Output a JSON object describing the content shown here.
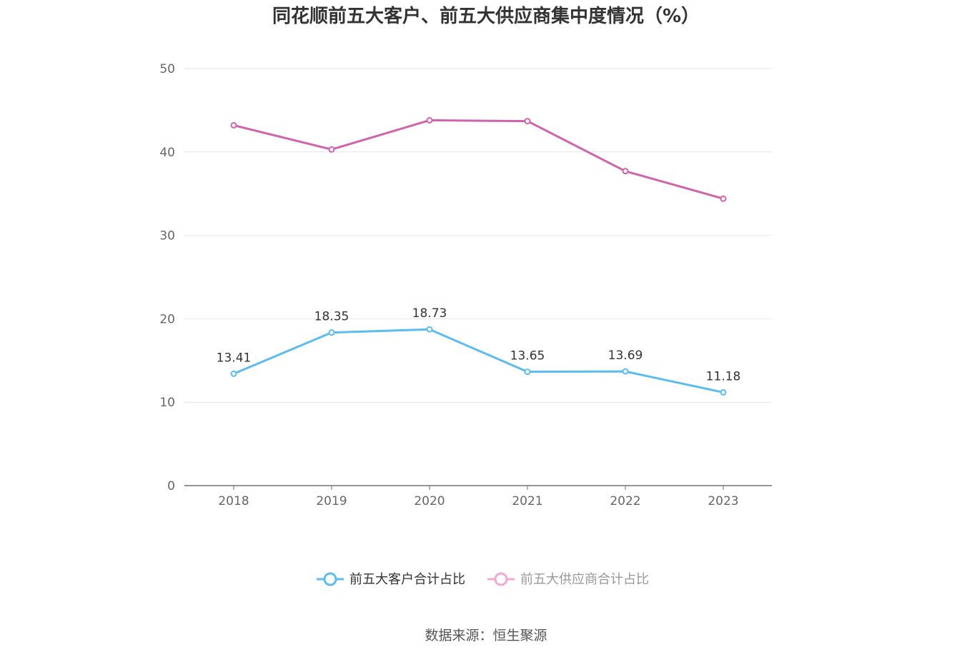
{
  "chart_data": {
    "type": "line",
    "title": "同花顺前五大客户、前五大供应商集中度情况（%）",
    "categories": [
      "2018",
      "2019",
      "2020",
      "2021",
      "2022",
      "2023"
    ],
    "ylim": [
      0,
      50
    ],
    "yticks": [
      "0",
      "10",
      "20",
      "30",
      "40",
      "50"
    ],
    "grid": true,
    "legend_position": "bottom",
    "series": [
      {
        "name": "前五大客户合计占比",
        "color": "#5bbcf0",
        "values": [
          13.41,
          18.35,
          18.73,
          13.65,
          13.69,
          11.18
        ],
        "labels": [
          "13.41",
          "18.35",
          "18.73",
          "13.65",
          "13.69",
          "11.18"
        ],
        "show_labels": true
      },
      {
        "name": "前五大供应商合计占比",
        "color": "#d064ac",
        "legend_color": "#f0a9d4",
        "values": [
          43.2,
          40.3,
          43.8,
          43.7,
          37.7,
          34.4
        ],
        "show_labels": false
      }
    ]
  },
  "source": "数据来源：恒生聚源"
}
